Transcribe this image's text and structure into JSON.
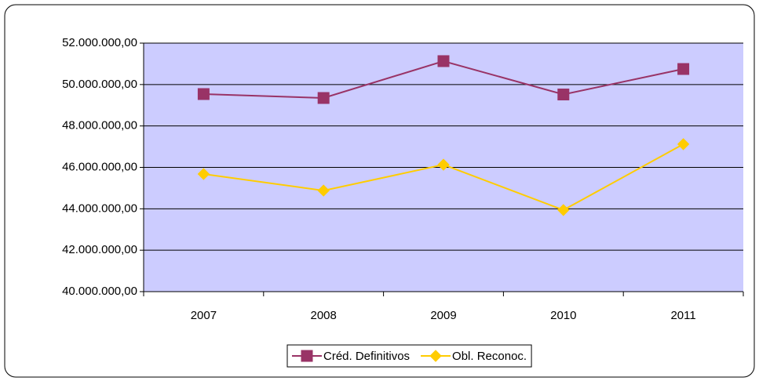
{
  "chart_data": {
    "type": "line",
    "categories": [
      "2007",
      "2008",
      "2009",
      "2010",
      "2011"
    ],
    "series": [
      {
        "name": "Créd. Definitivos",
        "color": "#993366",
        "marker": "square",
        "values": [
          49540000,
          49350000,
          51130000,
          49520000,
          50750000
        ]
      },
      {
        "name": "Obl. Reconoc.",
        "color": "#ffcc00",
        "marker": "diamond",
        "values": [
          45680000,
          44880000,
          46130000,
          43940000,
          47120000
        ]
      }
    ],
    "ylim": [
      40000000,
      52000000
    ],
    "yticks": [
      {
        "value": 40000000,
        "label": "40.000.000,00"
      },
      {
        "value": 42000000,
        "label": "42.000.000,00"
      },
      {
        "value": 44000000,
        "label": "44.000.000,00"
      },
      {
        "value": 46000000,
        "label": "46.000.000,00"
      },
      {
        "value": 48000000,
        "label": "48.000.000,00"
      },
      {
        "value": 50000000,
        "label": "50.000.000,00"
      },
      {
        "value": 52000000,
        "label": "52.000.000,00"
      }
    ],
    "grid": true,
    "plot_background": "#ccccff",
    "legend": "bottom"
  }
}
